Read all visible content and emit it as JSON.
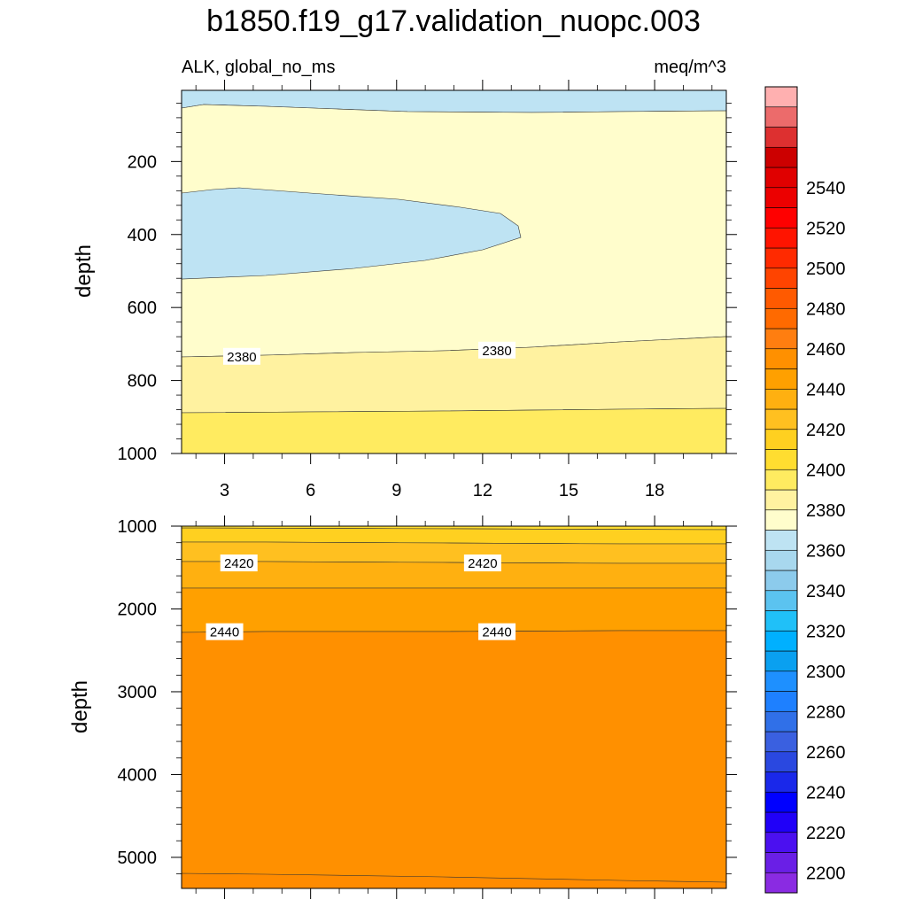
{
  "chart_data": {
    "type": "contour",
    "title": "b1850.f19_g17.validation_nuopc.003",
    "variable_label": "ALK, global_no_ms",
    "units": "meq/m^3",
    "x": {
      "ticks": [
        3,
        6,
        9,
        12,
        15,
        18
      ],
      "tick_labels": [
        "3",
        "6",
        "9",
        "12",
        "15",
        "18"
      ],
      "range": [
        1.5,
        20.5
      ]
    },
    "panels": [
      {
        "name": "upper",
        "ylabel": "depth",
        "y_range": [
          5,
          1000
        ],
        "y_ticks": [
          200,
          400,
          600,
          800,
          1000
        ],
        "y_tick_labels": [
          "200",
          "400",
          "600",
          "800",
          "1000"
        ],
        "regions": [
          {
            "name": "surface-band-2360",
            "level": 2360
          },
          {
            "name": "upper-layer-2370",
            "level": 2370
          },
          {
            "name": "lens-2360",
            "level": 2360
          },
          {
            "name": "layer-2380",
            "level": 2380
          },
          {
            "name": "layer-2390",
            "level": 2390
          }
        ],
        "contour_labels": [
          {
            "text": "2380",
            "x": 3.6,
            "depth": 735
          },
          {
            "text": "2380",
            "x": 12.5,
            "depth": 718
          }
        ]
      },
      {
        "name": "lower",
        "ylabel": "depth",
        "y_range": [
          1000,
          5375
        ],
        "y_ticks": [
          1000,
          2000,
          3000,
          4000,
          5000
        ],
        "y_tick_labels": [
          "1000",
          "2000",
          "3000",
          "4000",
          "5000"
        ],
        "regions": [
          {
            "name": "layer-2400",
            "level": 2400
          },
          {
            "name": "layer-2410",
            "level": 2410
          },
          {
            "name": "layer-2420",
            "level": 2420
          },
          {
            "name": "layer-2430",
            "level": 2430
          },
          {
            "name": "layer-2440",
            "level": 2440
          },
          {
            "name": "bottom-layer-2450",
            "level": 2450
          }
        ],
        "contour_labels": [
          {
            "text": "2420",
            "x": 3.5,
            "depth": 1450
          },
          {
            "text": "2420",
            "x": 12.0,
            "depth": 1450
          },
          {
            "text": "2440",
            "x": 3.0,
            "depth": 2280
          },
          {
            "text": "2440",
            "x": 12.5,
            "depth": 2280
          }
        ]
      }
    ],
    "colorbar": {
      "levels_min": 2190,
      "step": 10,
      "labels": [
        "2200",
        "2220",
        "2240",
        "2260",
        "2280",
        "2300",
        "2320",
        "2340",
        "2360",
        "2380",
        "2400",
        "2420",
        "2440",
        "2460",
        "2480",
        "2500",
        "2520",
        "2540"
      ],
      "colors": [
        "#8a2be2",
        "#6a1fe6",
        "#4b10f0",
        "#2000f8",
        "#0000ff",
        "#1a28ea",
        "#2a48e0",
        "#3a60e0",
        "#3070e8",
        "#1e80ff",
        "#1e90ff",
        "#0aa0f0",
        "#00b0ff",
        "#20c0f8",
        "#5bc3f0",
        "#8ccbec",
        "#a8d8ee",
        "#bee3f3",
        "#fffdcc",
        "#fff2a0",
        "#ffeb60",
        "#ffdd30",
        "#ffd020",
        "#ffc020",
        "#ffb010",
        "#ffa000",
        "#ff9000",
        "#ff7e10",
        "#ff6a00",
        "#ff5a00",
        "#ff4400",
        "#ff2a00",
        "#ff1400",
        "#ff0000",
        "#ec0000",
        "#e00000",
        "#cc0000",
        "#dd3030",
        "#ec6b6b",
        "#ffb0b0"
      ]
    }
  }
}
